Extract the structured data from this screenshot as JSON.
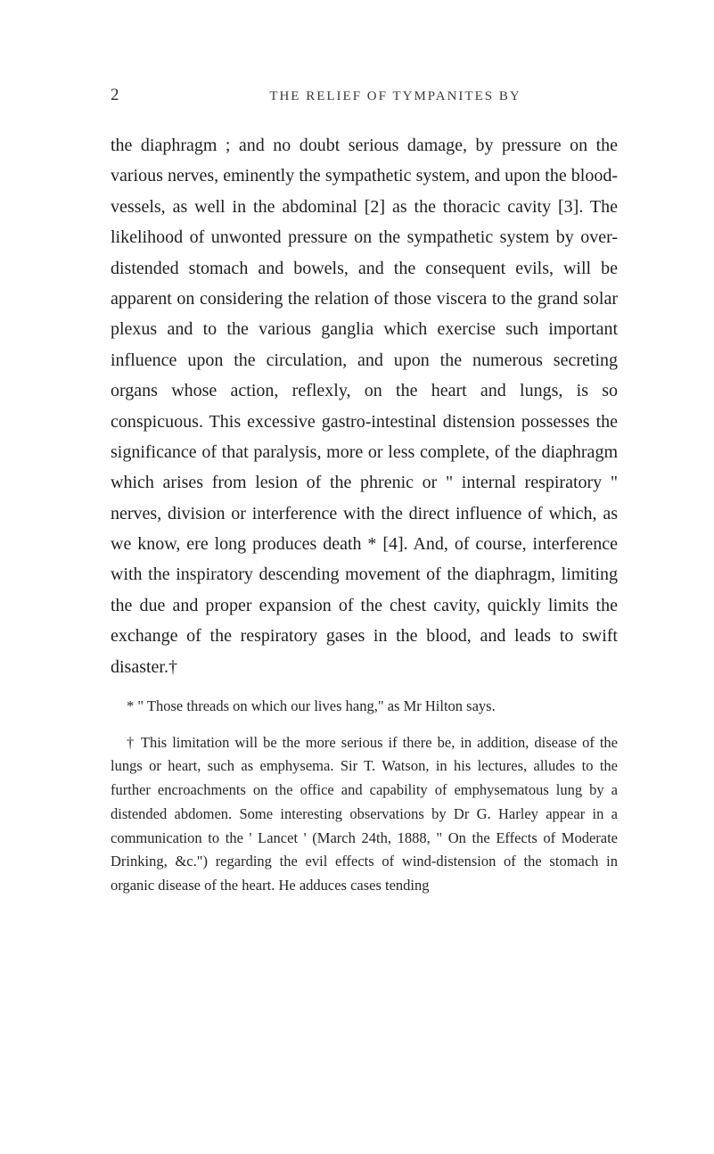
{
  "header": {
    "page_number": "2",
    "running_title": "THE RELIEF OF TYMPANITES BY"
  },
  "body": {
    "paragraph": "the diaphragm ; and no doubt serious damage, by pressure on the various nerves, eminently the sympathetic system, and upon the blood-vessels, as well in the abdominal [2] as the thoracic cavity [3]. The likelihood of unwonted pressure on the sympathetic system by over-distended stomach and bowels, and the consequent evils, will be apparent on considering the relation of those viscera to the grand solar plexus and to the various ganglia which exercise such important influence upon the circulation, and upon the numerous secreting organs whose action, reflexly, on the heart and lungs, is so conspicuous. This excessive gastro-intestinal distension possesses the significance of that paralysis, more or less complete, of the diaphragm which arises from lesion of the phrenic or \" internal respiratory \" nerves, division or interference with the direct influence of which, as we know, ere long produces death * [4]. And, of course, interference with the inspiratory descending movement of the diaphragm, limiting the due and proper expansion of the chest cavity, quickly limits the exchange of the respiratory gases in the blood, and leads to swift disaster.†"
  },
  "footnotes": {
    "note1": "* \" Those threads on which our lives hang,\" as Mr Hilton says.",
    "note2": "† This limitation will be the more serious if there be, in addition, disease of the lungs or heart, such as emphysema. Sir T. Watson, in his lectures, alludes to the further encroachments on the office and capability of emphysematous lung by a distended abdomen. Some interesting observations by Dr G. Harley appear in a communication to the ' Lancet ' (March 24th, 1888, \" On the Effects of Moderate Drinking, &c.\") regarding the evil effects of wind-distension of the stomach in organic disease of the heart. He adduces cases tending"
  }
}
